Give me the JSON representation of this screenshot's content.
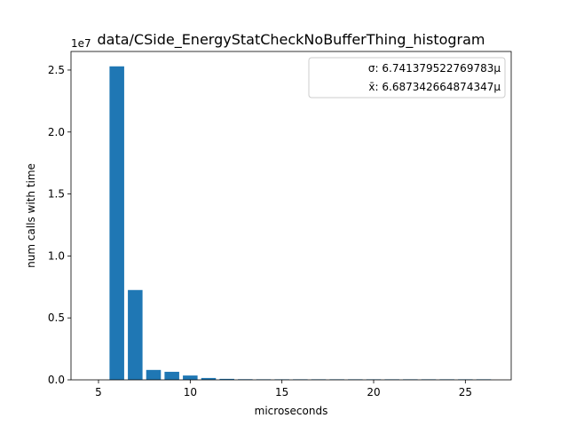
{
  "chart_data": {
    "type": "bar",
    "title": "data/CSide_EnergyStatCheckNoBufferThing_histogram",
    "xlabel": "microseconds",
    "ylabel": "num calls with time",
    "offset_label": "1e7",
    "xlim": [
      3.5,
      27.5
    ],
    "ylim": [
      0,
      2.65
    ],
    "xticks": [
      5,
      10,
      15,
      20,
      25
    ],
    "xtick_labels": [
      "5",
      "10",
      "15",
      "20",
      "25"
    ],
    "yticks": [
      0.0,
      0.5,
      1.0,
      1.5,
      2.0,
      2.5
    ],
    "ytick_labels": [
      "0.0",
      "0.5",
      "1.0",
      "1.5",
      "2.0",
      "2.5"
    ],
    "grid": false,
    "legend_position": "top-right",
    "legend": [
      {
        "label": "σ: 6.741379522769783μ"
      },
      {
        "label": "x̄: 6.687342664874347μ"
      }
    ],
    "bar_color": "#1f77b4",
    "bars": [
      {
        "x": 6,
        "value": 2.53
      },
      {
        "x": 7,
        "value": 0.725
      },
      {
        "x": 8,
        "value": 0.08
      },
      {
        "x": 9,
        "value": 0.065
      },
      {
        "x": 10,
        "value": 0.035
      },
      {
        "x": 11,
        "value": 0.015
      },
      {
        "x": 12,
        "value": 0.008
      },
      {
        "x": 13,
        "value": 0.005
      },
      {
        "x": 14,
        "value": 0.003
      },
      {
        "x": 15,
        "value": 0.002
      },
      {
        "x": 16,
        "value": 0.001
      },
      {
        "x": 17,
        "value": 0.001
      },
      {
        "x": 18,
        "value": 0.0005
      },
      {
        "x": 19,
        "value": 0.0004
      },
      {
        "x": 20,
        "value": 0.0003
      },
      {
        "x": 21,
        "value": 0.0003
      },
      {
        "x": 22,
        "value": 0.0002
      },
      {
        "x": 23,
        "value": 0.0002
      },
      {
        "x": 24,
        "value": 0.0001
      },
      {
        "x": 25,
        "value": 0.0001
      },
      {
        "x": 26,
        "value": 0.0001
      }
    ]
  }
}
